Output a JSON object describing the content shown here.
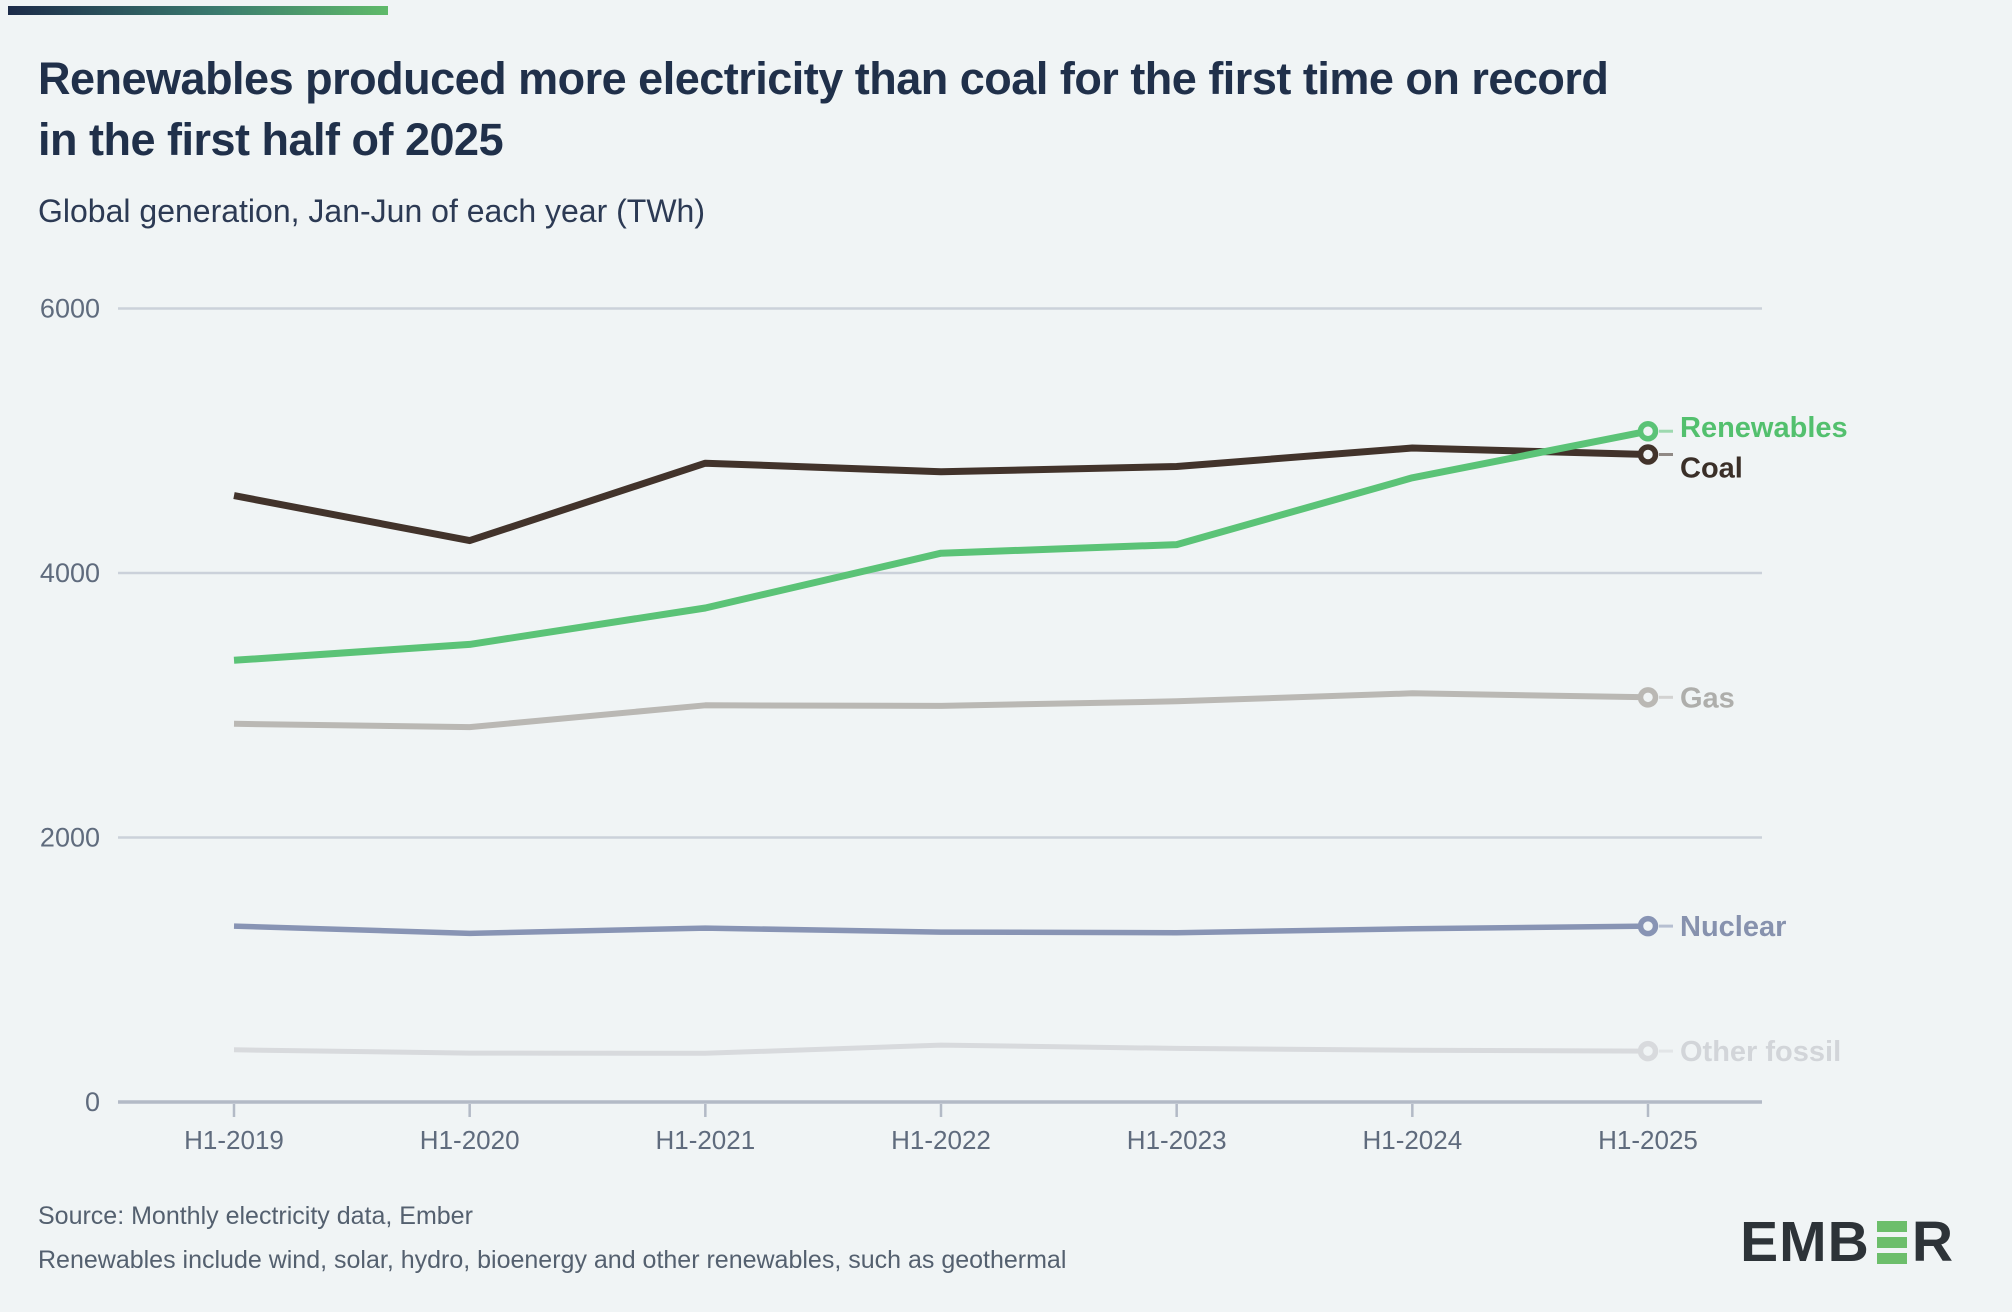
{
  "accent_bar": {
    "gradient_from": "#1C2B49",
    "gradient_to": "#5FBA6A"
  },
  "header": {
    "title_line1": "Renewables produced more electricity than coal for the first time on record",
    "title_line2": "in the first half of 2025",
    "subtitle": "Global generation, Jan-Jun of each year (TWh)"
  },
  "chart_data": {
    "type": "line",
    "title": "Global generation, Jan-Jun of each year (TWh)",
    "xlabel": "",
    "ylabel": "TWh",
    "categories": [
      "H1-2019",
      "H1-2020",
      "H1-2021",
      "H1-2022",
      "H1-2023",
      "H1-2024",
      "H1-2025"
    ],
    "series": [
      {
        "name": "Other fossil",
        "color": "#D8DADD",
        "label_color": "#D2D5D9",
        "line_width": 5,
        "label_dy": 0,
        "values": [
          395,
          370,
          368,
          430,
          405,
          392,
          385
        ]
      },
      {
        "name": "Nuclear",
        "color": "#8894B4",
        "label_color": "#8792AE",
        "line_width": 5.5,
        "label_dy": 0,
        "values": [
          1330,
          1275,
          1315,
          1285,
          1280,
          1310,
          1330
        ]
      },
      {
        "name": "Gas",
        "color": "#BAB8B4",
        "label_color": "#AEAEAB",
        "line_width": 6,
        "label_dy": 0,
        "values": [
          2860,
          2835,
          3000,
          2995,
          3030,
          3090,
          3060
        ]
      },
      {
        "name": "Coal",
        "color": "#42332B",
        "label_color": "#3A2F28",
        "line_width": 7,
        "label_dy": 13,
        "values": [
          4585,
          4245,
          4830,
          4765,
          4805,
          4945,
          4896
        ]
      },
      {
        "name": "Renewables",
        "color": "#5BC377",
        "label_color": "#53C06E",
        "line_width": 7,
        "label_dy": -4,
        "values": [
          3340,
          3460,
          3735,
          4150,
          4215,
          4720,
          5072
        ]
      }
    ],
    "y_ticks": [
      0,
      2000,
      4000,
      6000
    ],
    "ylim": [
      0,
      6000
    ],
    "grid": true,
    "legend_position": "right-of-line-ends",
    "grid_color": "#CBD1DA",
    "axis_color": "#B3BAC6",
    "tick_label_color": "#5F6B7D",
    "background": "#F0F4F5"
  },
  "footer": {
    "source_line1": "Source: Monthly electricity data, Ember",
    "source_line2": "Renewables include wind, solar, hydro, bioenergy and other renewables, such as geothermal",
    "logo": {
      "left": "EMB",
      "right": "R",
      "bar_color": "#6CBE6B",
      "text_color": "#2D3338"
    }
  },
  "colors": {
    "background": "#F0F4F5",
    "title": "#20304A",
    "subtitle": "#2C3A54",
    "source_text": "#54606F"
  }
}
